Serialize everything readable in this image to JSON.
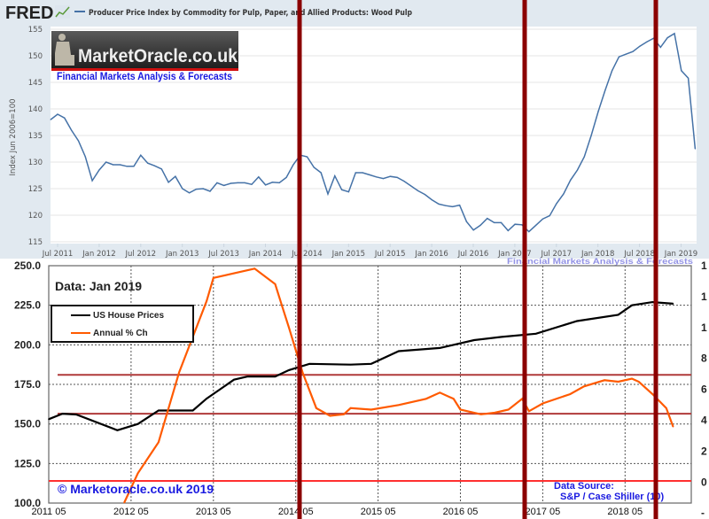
{
  "header": {
    "brand": "FRED",
    "series_title": "Producer Price Index by Commodity for Pulp, Paper, and Allied Products: Wood Pulp"
  },
  "watermark": {
    "logo_text": "MarketOracle.co.uk",
    "tagline": "Financial Markets Analysis & Forecasts",
    "faint_tagline": "Financial Markets Analysis & Forecasts"
  },
  "colors": {
    "fred_line": "#4572a7",
    "house_prices": "#000000",
    "annual_change": "#ff5a00",
    "reference_lines": "#b03a3a",
    "zero_line": "#ff3030",
    "vertical_markers": "#8b0000"
  },
  "chart_data": [
    {
      "type": "line",
      "title": "Producer Price Index by Commodity for Pulp, Paper, and Allied Products: Wood Pulp",
      "ylabel": "Index Jun 2006=100",
      "ylim": [
        115,
        155
      ],
      "yticks": [
        "155",
        "150",
        "145",
        "140",
        "135",
        "130",
        "125",
        "120",
        "115"
      ],
      "xticks": [
        "Jul 2011",
        "Jan 2012",
        "Jul 2012",
        "Jan 2013",
        "Jul 2013",
        "Jan 2014",
        "Jul 2014",
        "Jan 2015",
        "Jul 2015",
        "Jan 2016",
        "Jul 2016",
        "Jan 2017",
        "Jul 2017",
        "Jan 2018",
        "Jul 2018",
        "Jan 2019"
      ],
      "grid": true,
      "series": [
        {
          "dates": [
            "2011-06",
            "2011-07",
            "2011-08",
            "2011-09",
            "2011-10",
            "2011-11",
            "2011-12",
            "2012-01",
            "2012-02",
            "2012-03",
            "2012-04",
            "2012-05",
            "2012-06",
            "2012-07",
            "2012-08",
            "2012-09",
            "2012-10",
            "2012-11",
            "2012-12",
            "2013-01",
            "2013-02",
            "2013-03",
            "2013-04",
            "2013-05",
            "2013-06",
            "2013-07",
            "2013-08",
            "2013-09",
            "2013-10",
            "2013-11",
            "2013-12",
            "2014-01",
            "2014-02",
            "2014-03",
            "2014-04",
            "2014-05",
            "2014-06",
            "2014-07",
            "2014-08",
            "2014-09",
            "2014-10",
            "2014-11",
            "2014-12",
            "2015-01",
            "2015-02",
            "2015-03",
            "2015-04",
            "2015-05",
            "2015-06",
            "2015-07",
            "2015-08",
            "2015-09",
            "2015-10",
            "2015-11",
            "2015-12",
            "2016-01",
            "2016-02",
            "2016-03",
            "2016-04",
            "2016-05",
            "2016-06",
            "2016-07",
            "2016-08",
            "2016-09",
            "2016-10",
            "2016-11",
            "2016-12",
            "2017-01",
            "2017-02",
            "2017-03",
            "2017-04",
            "2017-05",
            "2017-06",
            "2017-07",
            "2017-08",
            "2017-09",
            "2017-10",
            "2017-11",
            "2017-12",
            "2018-01",
            "2018-02",
            "2018-03",
            "2018-04",
            "2018-05",
            "2018-06",
            "2018-07",
            "2018-08",
            "2018-09",
            "2018-10",
            "2018-11",
            "2018-12",
            "2019-01",
            "2019-02",
            "2019-03"
          ],
          "values": [
            138,
            139,
            138.3,
            136,
            134,
            131,
            126.5,
            128.5,
            130,
            129.5,
            129.5,
            129.2,
            129.2,
            131.3,
            129.8,
            129.3,
            128.7,
            126.2,
            127.3,
            125,
            124.2,
            124.9,
            125,
            124.5,
            126.1,
            125.6,
            126,
            126.1,
            126.1,
            125.8,
            127.2,
            125.7,
            126.2,
            126.1,
            127.1,
            129.5,
            131.3,
            131,
            129,
            128,
            124,
            127.4,
            124.8,
            124.4,
            128,
            128,
            127.6,
            127.2,
            126.9,
            127.3,
            127.1,
            126.4,
            125.5,
            124.6,
            123.9,
            122.9,
            122.1,
            121.8,
            121.6,
            121.9,
            118.8,
            117.2,
            118.1,
            119.4,
            118.6,
            118.6,
            117.1,
            118.3,
            118.2,
            116.9,
            118.1,
            119.3,
            119.9,
            122.2,
            124,
            126.6,
            128.5,
            131,
            135,
            139.5,
            143.5,
            147.2,
            149.8,
            150.3,
            150.8,
            151.8,
            152.6,
            153.3,
            151.6,
            153.4,
            154.2,
            147.2,
            145.8,
            132.5
          ]
        }
      ]
    },
    {
      "type": "line",
      "annotation": "Data: Jan 2019",
      "copyright": "© Marketoracle.co.uk 2019",
      "source_label": "Data Source:",
      "source": "S&P / Case Shiller (10)",
      "ylim": [
        100,
        250
      ],
      "yticks": [
        "250.0",
        "225.0",
        "200.0",
        "175.0",
        "150.0",
        "125.0",
        "100.0"
      ],
      "y2lim": [
        -2,
        14
      ],
      "y2ticks_visible": [
        "1",
        "1",
        "1",
        "8",
        "6",
        "4",
        "2",
        "0",
        "-"
      ],
      "xticks": [
        "2011 05",
        "2012 05",
        "2013 05",
        "2014 05",
        "2015 05",
        "2016 05",
        "2017 05",
        "2018 05"
      ],
      "grid": true,
      "legend": "top-left",
      "reference_levels_left_axis": [
        181,
        156.5
      ],
      "zero_line_right_axis": 0,
      "series": [
        {
          "name": "US House Prices",
          "axis": "left",
          "dates": [
            "2011-05",
            "2011-07",
            "2011-09",
            "2012-03",
            "2012-06",
            "2012-09",
            "2013-02",
            "2013-04",
            "2013-08",
            "2013-10",
            "2014-02",
            "2014-04",
            "2014-07",
            "2015-01",
            "2015-04",
            "2015-08",
            "2016-02",
            "2016-07",
            "2016-11",
            "2017-04",
            "2017-10",
            "2018-04",
            "2018-06",
            "2018-09",
            "2018-12"
          ],
          "values": [
            153,
            156.5,
            156,
            146,
            150,
            158.5,
            158.5,
            166,
            178,
            180,
            180,
            184,
            188,
            187.5,
            188,
            196,
            198,
            203,
            205,
            207,
            215,
            219,
            225,
            227,
            226
          ]
        },
        {
          "name": "Annual % Ch",
          "axis": "right",
          "dates": [
            "2012-04",
            "2012-06",
            "2012-09",
            "2012-12",
            "2013-04",
            "2013-05",
            "2013-07",
            "2013-11",
            "2014-02",
            "2014-03",
            "2014-04",
            "2014-06",
            "2014-08",
            "2014-10",
            "2014-12",
            "2015-01",
            "2015-04",
            "2015-08",
            "2015-12",
            "2016-02",
            "2016-04",
            "2016-05",
            "2016-08",
            "2016-10",
            "2016-12",
            "2017-02",
            "2017-03",
            "2017-05",
            "2017-09",
            "2017-11",
            "2018-02",
            "2018-04",
            "2018-06",
            "2018-07",
            "2018-09",
            "2018-11",
            "2018-12"
          ],
          "values": [
            -1.4,
            0.5,
            2.5,
            7,
            11.6,
            13.1,
            13.3,
            13.7,
            12.7,
            11.3,
            9.9,
            7,
            4.7,
            4.2,
            4.3,
            4.7,
            4.6,
            4.9,
            5.3,
            5.7,
            5.3,
            4.6,
            4.3,
            4.4,
            4.6,
            5.3,
            4.5,
            5,
            5.6,
            6.1,
            6.5,
            6.4,
            6.6,
            6.4,
            5.6,
            4.7,
            3.5
          ]
        }
      ]
    }
  ]
}
